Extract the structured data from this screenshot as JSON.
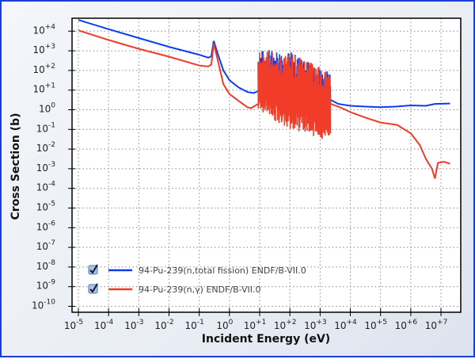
{
  "chart_data": {
    "type": "line",
    "title": "",
    "xlabel": "Incident Energy (eV)",
    "ylabel": "Cross Section (b)",
    "xscale": "log",
    "yscale": "log",
    "xlim_log10": [
      -5.2,
      7.6
    ],
    "ylim_log10": [
      -10.3,
      4.7
    ],
    "x_ticks": [
      {
        "base": "10",
        "exp": "-5",
        "v": -5
      },
      {
        "base": "10",
        "exp": "-4",
        "v": -4
      },
      {
        "base": "10",
        "exp": "-3",
        "v": -3
      },
      {
        "base": "10",
        "exp": "-2",
        "v": -2
      },
      {
        "base": "10",
        "exp": "-1",
        "v": -1
      },
      {
        "base": "10",
        "exp": "0",
        "v": 0
      },
      {
        "base": "10",
        "exp": "+1",
        "v": 1
      },
      {
        "base": "10",
        "exp": "+2",
        "v": 2
      },
      {
        "base": "10",
        "exp": "+3",
        "v": 3
      },
      {
        "base": "10",
        "exp": "+4",
        "v": 4
      },
      {
        "base": "10",
        "exp": "+5",
        "v": 5
      },
      {
        "base": "10",
        "exp": "+6",
        "v": 6
      },
      {
        "base": "10",
        "exp": "+7",
        "v": 7
      }
    ],
    "y_ticks": [
      {
        "base": "10",
        "exp": "+4",
        "v": 4
      },
      {
        "base": "10",
        "exp": "+3",
        "v": 3
      },
      {
        "base": "10",
        "exp": "+2",
        "v": 2
      },
      {
        "base": "10",
        "exp": "+1",
        "v": 1
      },
      {
        "base": "10",
        "exp": "0",
        "v": 0
      },
      {
        "base": "10",
        "exp": "-1",
        "v": -1
      },
      {
        "base": "10",
        "exp": "-2",
        "v": -2
      },
      {
        "base": "10",
        "exp": "-3",
        "v": -3
      },
      {
        "base": "10",
        "exp": "-4",
        "v": -4
      },
      {
        "base": "10",
        "exp": "-5",
        "v": -5
      },
      {
        "base": "10",
        "exp": "-6",
        "v": -6
      },
      {
        "base": "10",
        "exp": "-7",
        "v": -7
      },
      {
        "base": "10",
        "exp": "-8",
        "v": -8
      },
      {
        "base": "10",
        "exp": "-9",
        "v": -9
      },
      {
        "base": "10",
        "exp": "-10",
        "v": -10
      }
    ],
    "grid": true,
    "legend_position": "bottom-left",
    "series": [
      {
        "name": "94-Pu-239(n,total fission) ENDF/B-VII.0",
        "color": "#0a3ff0",
        "checked": true,
        "points_log10": [
          [
            -5,
            4.57
          ],
          [
            -4,
            4.1
          ],
          [
            -3,
            3.65
          ],
          [
            -2,
            3.2
          ],
          [
            -1,
            2.8
          ],
          [
            -0.7,
            2.65
          ],
          [
            -0.6,
            2.72
          ],
          [
            -0.52,
            3.5
          ],
          [
            -0.4,
            2.9
          ],
          [
            -0.2,
            2.0
          ],
          [
            0,
            1.5
          ],
          [
            0.31,
            1.13
          ],
          [
            0.6,
            0.9
          ],
          [
            0.8,
            0.85
          ],
          [
            0.95,
            0.95
          ]
        ],
        "resonance_region_log10": [
          0.95,
          3.35
        ],
        "resonance_envelope_upper": [
          [
            0.95,
            3.0
          ],
          [
            1.3,
            3.1
          ],
          [
            2.0,
            3.0
          ],
          [
            2.7,
            2.4
          ],
          [
            3.35,
            2.0
          ]
        ],
        "resonance_envelope_lower": [
          [
            0.95,
            0.5
          ],
          [
            1.5,
            0.0
          ],
          [
            2.0,
            -0.3
          ],
          [
            3.0,
            -0.5
          ],
          [
            3.35,
            -0.3
          ]
        ],
        "points_after_log10": [
          [
            3.35,
            0.5
          ],
          [
            3.6,
            0.3
          ],
          [
            4,
            0.2
          ],
          [
            4.5,
            0.16
          ],
          [
            5,
            0.13
          ],
          [
            5.5,
            0.16
          ],
          [
            6,
            0.22
          ],
          [
            6.5,
            0.2
          ],
          [
            6.8,
            0.3
          ],
          [
            7.3,
            0.32
          ]
        ]
      },
      {
        "name": "94-Pu-239(n,γ) ENDF/B-VII.0",
        "color": "#f03c28",
        "checked": true,
        "points_log10": [
          [
            -5,
            4.04
          ],
          [
            -4,
            3.55
          ],
          [
            -3,
            3.1
          ],
          [
            -2,
            2.7
          ],
          [
            -1,
            2.25
          ],
          [
            -0.7,
            2.2
          ],
          [
            -0.6,
            2.3
          ],
          [
            -0.52,
            3.35
          ],
          [
            -0.4,
            2.6
          ],
          [
            -0.2,
            1.3
          ],
          [
            0,
            0.8
          ],
          [
            0.31,
            0.44
          ],
          [
            0.6,
            0.12
          ],
          [
            0.71,
            0.08
          ],
          [
            0.95,
            0.3
          ]
        ],
        "resonance_region_log10": [
          0.95,
          3.35
        ],
        "resonance_envelope_upper": [
          [
            0.95,
            2.9
          ],
          [
            1.3,
            3.0
          ],
          [
            2.0,
            2.9
          ],
          [
            2.7,
            2.4
          ],
          [
            3.35,
            2.0
          ]
        ],
        "resonance_envelope_lower": [
          [
            0.95,
            0.0
          ],
          [
            1.5,
            -0.6
          ],
          [
            2.0,
            -1.0
          ],
          [
            3.0,
            -1.5
          ],
          [
            3.35,
            -1.5
          ]
        ],
        "points_after_log10": [
          [
            3.35,
            0.3
          ],
          [
            3.7,
            0.1
          ],
          [
            4,
            -0.12
          ],
          [
            4.5,
            -0.4
          ],
          [
            5,
            -0.65
          ],
          [
            5.55,
            -0.77
          ],
          [
            6,
            -1.2
          ],
          [
            6.3,
            -1.8
          ],
          [
            6.5,
            -2.5
          ],
          [
            6.7,
            -3.0
          ],
          [
            6.8,
            -3.5
          ],
          [
            6.9,
            -2.7
          ],
          [
            7.1,
            -2.65
          ],
          [
            7.3,
            -2.75
          ]
        ]
      }
    ]
  }
}
